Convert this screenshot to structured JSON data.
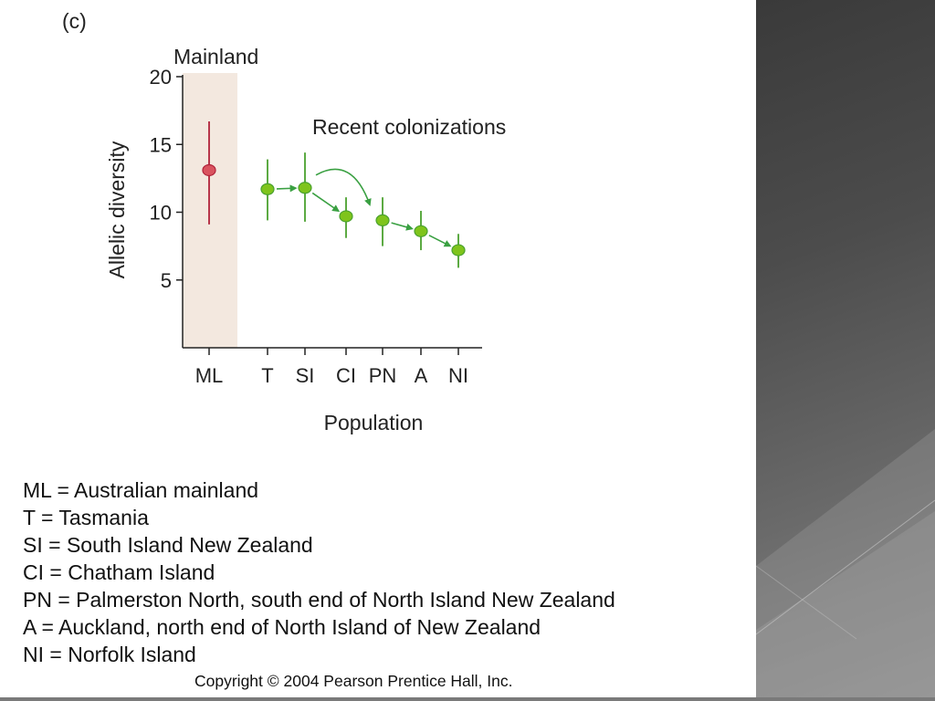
{
  "panel_label": "(c)",
  "chart_data": {
    "type": "scatter",
    "panel_label": "(c)",
    "ylabel": "Allelic diversity",
    "xlabel": "Population",
    "ylim": [
      0,
      20
    ],
    "yticks": [
      5,
      10,
      15,
      20
    ],
    "categories": [
      "ML",
      "T",
      "SI",
      "CI",
      "PN",
      "A",
      "NI"
    ],
    "annotations": {
      "mainland": "Mainland",
      "recent": "Recent colonizations"
    },
    "series": [
      {
        "group": "mainland",
        "color": "#d9535f",
        "errorColor": "#b0223a",
        "points": [
          {
            "x": "ML",
            "y": 13.1,
            "low": 9.1,
            "high": 16.7
          }
        ]
      },
      {
        "group": "recent",
        "color": "#7fc41c",
        "errorColor": "#4aa12e",
        "points": [
          {
            "x": "T",
            "y": 11.7,
            "low": 9.4,
            "high": 13.9
          },
          {
            "x": "SI",
            "y": 11.8,
            "low": 9.3,
            "high": 14.4
          },
          {
            "x": "CI",
            "y": 9.7,
            "low": 8.1,
            "high": 11.1
          },
          {
            "x": "PN",
            "y": 9.4,
            "low": 7.5,
            "high": 11.1
          },
          {
            "x": "A",
            "y": 8.6,
            "low": 7.2,
            "high": 10.1
          },
          {
            "x": "NI",
            "y": 7.2,
            "low": 5.9,
            "high": 8.4
          }
        ]
      }
    ],
    "arrows": [
      {
        "from": "T",
        "to": "SI"
      },
      {
        "from": "SI",
        "to": "CI"
      },
      {
        "from": "SI",
        "to": "PN",
        "curved": true
      },
      {
        "from": "PN",
        "to": "A"
      },
      {
        "from": "A",
        "to": "NI"
      }
    ],
    "colors": {
      "mainland_band": "#f3e8df",
      "arrow": "#3aa042"
    }
  },
  "legend": [
    "ML = Australian mainland",
    "T = Tasmania",
    "SI = South Island New Zealand",
    "CI = Chatham Island",
    "PN = Palmerston North, south end of North Island New Zealand",
    "A = Auckland, north end of North Island of New Zealand",
    "NI = Norfolk Island"
  ],
  "copyright": "Copyright © 2004 Pearson Prentice Hall, Inc."
}
